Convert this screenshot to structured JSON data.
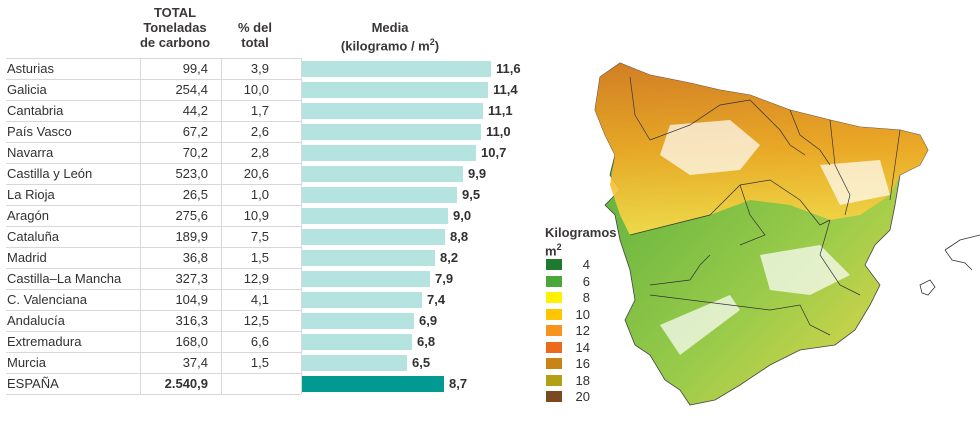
{
  "headers": {
    "total_line1": "TOTAL",
    "total_line2": "Toneladas",
    "total_line3": "de carbono",
    "pct_line1": "% del",
    "pct_line2": "total",
    "media_line1": "Media",
    "media_line2": "(kilogramo / m",
    "media_sup": "2",
    "media_end": ")"
  },
  "rows": [
    {
      "name": "Asturias",
      "total": "99,4",
      "pct": "3,9",
      "media": "11,6"
    },
    {
      "name": "Galicia",
      "total": "254,4",
      "pct": "10,0",
      "media": "11,4"
    },
    {
      "name": "Cantabria",
      "total": "44,2",
      "pct": "1,7",
      "media": "11,1"
    },
    {
      "name": "País Vasco",
      "total": "67,2",
      "pct": "2,6",
      "media": "11,0"
    },
    {
      "name": "Navarra",
      "total": "70,2",
      "pct": "2,8",
      "media": "10,7"
    },
    {
      "name": "Castilla y León",
      "total": "523,0",
      "pct": "20,6",
      "media": "9,9"
    },
    {
      "name": "La Rioja",
      "total": "26,5",
      "pct": "1,0",
      "media": "9,5"
    },
    {
      "name": "Aragón",
      "total": "275,6",
      "pct": "10,9",
      "media": "9,0"
    },
    {
      "name": "Cataluña",
      "total": "189,9",
      "pct": "7,5",
      "media": "8,8"
    },
    {
      "name": "Madrid",
      "total": "36,8",
      "pct": "1,5",
      "media": "8,2"
    },
    {
      "name": "Castilla–La Mancha",
      "total": "327,3",
      "pct": "12,9",
      "media": "7,9"
    },
    {
      "name": "C. Valenciana",
      "total": "104,9",
      "pct": "4,1",
      "media": "7,4"
    },
    {
      "name": "Andalucía",
      "total": "316,3",
      "pct": "12,5",
      "media": "6,9"
    },
    {
      "name": "Extremadura",
      "total": "168,0",
      "pct": "6,6",
      "media": "6,8"
    },
    {
      "name": "Murcia",
      "total": "37,4",
      "pct": "1,5",
      "media": "6,5"
    },
    {
      "name": "ESPAÑA",
      "total": "2.540,9",
      "pct": "",
      "media": "8,7",
      "is_total": true
    }
  ],
  "legend": {
    "title_line1": "Kilogramos",
    "title_line2": "m",
    "title_sup": "2",
    "items": [
      {
        "label": "4",
        "color": "#1e7a2e"
      },
      {
        "label": "6",
        "color": "#4aa83a"
      },
      {
        "label": "8",
        "color": "#fff200"
      },
      {
        "label": "10",
        "color": "#ffc600"
      },
      {
        "label": "12",
        "color": "#f7941d"
      },
      {
        "label": "14",
        "color": "#ec6a1c"
      },
      {
        "label": "16",
        "color": "#c98416"
      },
      {
        "label": "18",
        "color": "#b3a014"
      },
      {
        "label": "20",
        "color": "#7a4a1e"
      }
    ]
  },
  "colors": {
    "bar": "#b5e3e0",
    "bar_total": "#009a92"
  },
  "chart_data": {
    "type": "bar",
    "title": "Media (kilogramo / m2)",
    "categories": [
      "Asturias",
      "Galicia",
      "Cantabria",
      "País Vasco",
      "Navarra",
      "Castilla y León",
      "La Rioja",
      "Aragón",
      "Cataluña",
      "Madrid",
      "Castilla–La Mancha",
      "C. Valenciana",
      "Andalucía",
      "Extremadura",
      "Murcia",
      "ESPAÑA"
    ],
    "values": [
      11.6,
      11.4,
      11.1,
      11.0,
      10.7,
      9.9,
      9.5,
      9.0,
      8.8,
      8.2,
      7.9,
      7.4,
      6.9,
      6.8,
      6.5,
      8.7
    ],
    "xlim": [
      0,
      11.6
    ],
    "orientation": "horizontal"
  }
}
